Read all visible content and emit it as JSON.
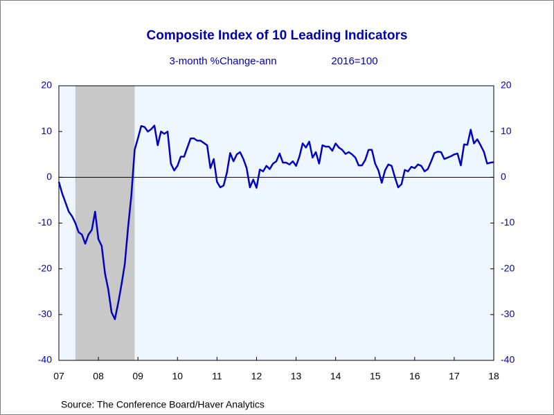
{
  "chart_data": {
    "type": "line",
    "title": "Composite Index of 10 Leading Indicators",
    "subtitle": "3-month %Change-ann",
    "subtitle_right": "2016=100",
    "source": "Source:  The Conference Board/Haver Analytics",
    "x": [
      2007.5,
      2007.583,
      2007.667,
      2007.75,
      2007.833,
      2007.917,
      2008,
      2008.083,
      2008.167,
      2008.25,
      2008.333,
      2008.417,
      2008.5,
      2008.583,
      2008.667,
      2008.75,
      2008.833,
      2008.917,
      2009,
      2009.083,
      2009.167,
      2009.25,
      2009.333,
      2009.417,
      2009.5,
      2009.583,
      2009.667,
      2009.75,
      2009.833,
      2009.917,
      2010,
      2010.083,
      2010.167,
      2010.25,
      2010.333,
      2010.417,
      2010.5,
      2010.583,
      2010.667,
      2010.75,
      2010.833,
      2010.917,
      2011,
      2011.083,
      2011.167,
      2011.25,
      2011.333,
      2011.417,
      2011.5,
      2011.583,
      2011.667,
      2011.75,
      2011.833,
      2011.917,
      2012,
      2012.083,
      2012.167,
      2012.25,
      2012.333,
      2012.417,
      2012.5,
      2012.583,
      2012.667,
      2012.75,
      2012.833,
      2012.917,
      2013,
      2013.083,
      2013.167,
      2013.25,
      2013.333,
      2013.417,
      2013.5,
      2013.583,
      2013.667,
      2013.75,
      2013.833,
      2013.917,
      2014,
      2014.083,
      2014.167,
      2014.25,
      2014.333,
      2014.417,
      2014.5,
      2014.583,
      2014.667,
      2014.75,
      2014.833,
      2014.917,
      2015,
      2015.083,
      2015.167,
      2015.25,
      2015.333,
      2015.417,
      2015.5,
      2015.583,
      2015.667,
      2015.75,
      2015.833,
      2015.917,
      2016,
      2016.083,
      2016.167,
      2016.25,
      2016.333,
      2016.417,
      2016.5,
      2016.583,
      2016.667,
      2016.75,
      2016.833,
      2016.917,
      2017,
      2017.083,
      2017.167,
      2017.25,
      2017.333,
      2017.417,
      2017.5,
      2017.583,
      2017.667,
      2017.75,
      2017.833,
      2017.917,
      2018,
      2018.083,
      2018.167,
      2018.25,
      2018.333,
      2018.417,
      2018.5
    ],
    "series": [
      {
        "name": "Composite Index of 10 Leading Indicators",
        "color": "#0000c0",
        "values": [
          -1,
          -3.5,
          -5.5,
          -7.5,
          -8.5,
          -10,
          -12,
          -12.5,
          -14.5,
          -12.5,
          -11.5,
          -7.5,
          -13.5,
          -15,
          -21,
          -24.5,
          -29.5,
          -31,
          -27.5,
          -23.5,
          -19,
          -11,
          -4,
          6,
          8.5,
          11.2,
          11,
          10,
          10.5,
          11.3,
          7,
          10,
          9.5,
          10,
          3,
          1.5,
          2.5,
          4.5,
          4.5,
          6.5,
          8.5,
          8.5,
          8,
          8,
          7.5,
          7,
          2,
          4,
          -1,
          -2.2,
          -1.8,
          1,
          5.3,
          3.5,
          5,
          5.5,
          4,
          2,
          -2.2,
          -0.5,
          -2.3,
          1.7,
          1.3,
          2.5,
          1.8,
          3,
          3.5,
          5.2,
          3.2,
          3.2,
          2.8,
          3.5,
          2.5,
          4.5,
          7.4,
          6.5,
          7.8,
          4.3,
          5.5,
          3,
          7,
          6.7,
          6.7,
          5.8,
          7.4,
          6.5,
          6,
          5.1,
          5.5,
          5,
          4.3,
          2.6,
          2.6,
          3.8,
          6,
          6,
          3,
          1.5,
          -1.2,
          1.5,
          2.8,
          2.5,
          0,
          -2.2,
          -1.5,
          1.6,
          1.3,
          2.3,
          2,
          2.8,
          2.5,
          1.3,
          1.8,
          3.5,
          5.3,
          5.6,
          5.5,
          4,
          4.3,
          4.6,
          5,
          5.2,
          2.6,
          7.2,
          7.1,
          10.4,
          7.4,
          8.3,
          7,
          5.6,
          3,
          3.2,
          3.3
        ]
      }
    ],
    "xlim": [
      2007.5,
      2018.5
    ],
    "xticks": [
      {
        "value": 2007.5,
        "label": "07"
      },
      {
        "value": 2008.5,
        "label": "08"
      },
      {
        "value": 2009.5,
        "label": "09"
      },
      {
        "value": 2010.5,
        "label": "10"
      },
      {
        "value": 2011.5,
        "label": "11"
      },
      {
        "value": 2012.5,
        "label": "12"
      },
      {
        "value": 2013.5,
        "label": "13"
      },
      {
        "value": 2014.5,
        "label": "14"
      },
      {
        "value": 2015.5,
        "label": "15"
      },
      {
        "value": 2016.5,
        "label": "16"
      },
      {
        "value": 2017.5,
        "label": "17"
      },
      {
        "value": 2018.5,
        "label": "18"
      }
    ],
    "ylim": [
      -40,
      20
    ],
    "yticks": [
      -40,
      -30,
      -20,
      -10,
      0,
      10,
      20
    ],
    "y2lim": [
      -40,
      20
    ],
    "y2ticks": [
      -40,
      -30,
      -20,
      -10,
      0,
      10,
      20
    ],
    "reference_line": 0,
    "shaded_regions": [
      [
        2007.917,
        2009.417
      ]
    ],
    "shade_color": "#c8c8c8",
    "plot_background": "#eef6ff"
  }
}
